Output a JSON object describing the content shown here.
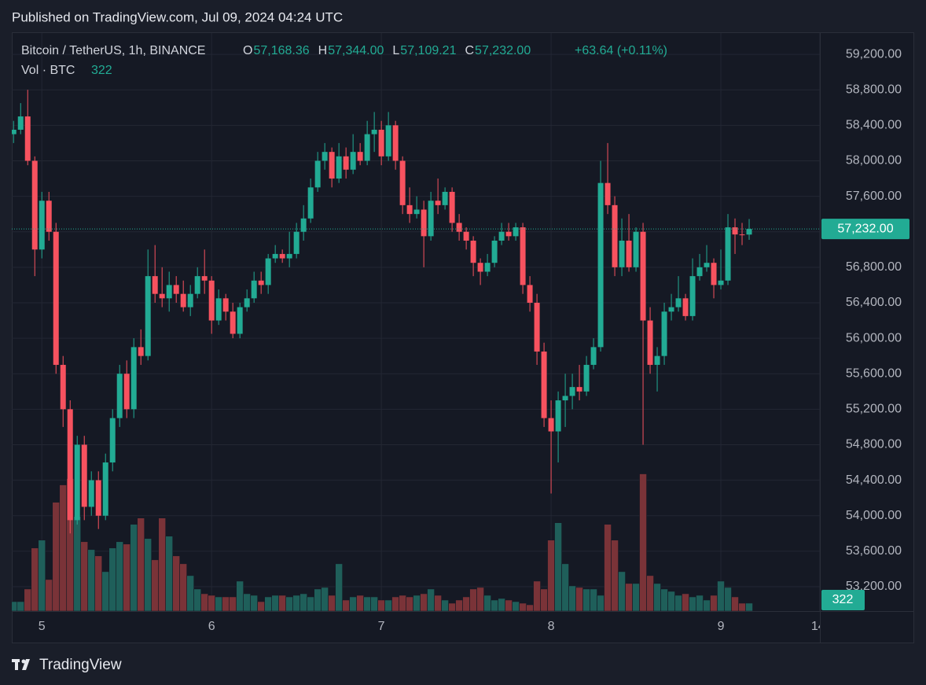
{
  "header": {
    "published": "Published on TradingView.com, Jul 09, 2024 04:24 UTC"
  },
  "footer": {
    "brand": "TradingView"
  },
  "chart_data": {
    "type": "candlestick",
    "symbol": "Bitcoin / TetherUS, 1h, BINANCE",
    "ohlc_legend": [
      {
        "key": "O",
        "value": "57,168.36"
      },
      {
        "key": "H",
        "value": "57,344.00"
      },
      {
        "key": "L",
        "value": "57,109.21"
      },
      {
        "key": "C",
        "value": "57,232.00"
      }
    ],
    "change": "+63.64 (+0.11%)",
    "volume_title": "Vol · BTC",
    "last_price_label": "57,232.00",
    "up_color": "#22ab94",
    "down_color": "#f7525f",
    "up_volume_color": "#1f5f5a",
    "down_volume_color": "#7a3338",
    "open": [
      58300,
      58350,
      58500,
      58000,
      57000,
      57550,
      57200,
      55700,
      55200,
      53950,
      54800,
      54100,
      54400,
      54000,
      54600,
      55100,
      55600,
      55200,
      55900,
      55800,
      56700,
      56500,
      56450,
      56600,
      56500,
      56350,
      56500,
      56700,
      56650,
      56200,
      56450,
      56300,
      56050,
      56350,
      56450,
      56650,
      56600,
      56900,
      56950,
      56900,
      56950,
      57200,
      57350,
      57700,
      58000,
      58100,
      57800,
      58050,
      57900,
      58100,
      58000,
      58300,
      58350,
      58050,
      58400,
      58000,
      57500,
      57400,
      57450,
      57150,
      57550,
      57500,
      57650,
      57300,
      57200,
      57100,
      56850,
      56750,
      56850,
      57100,
      57200,
      57150,
      57250,
      56600,
      56400,
      55850,
      55100,
      54950,
      55300,
      55350,
      55450,
      55400,
      55700,
      55900,
      57750,
      57500,
      56800,
      57100,
      56800,
      57200,
      56200,
      55700,
      55800,
      56300,
      56350,
      56450,
      56250,
      56700,
      56800,
      56850,
      56600,
      56650,
      57250,
      57170,
      57168.36
    ],
    "high": [
      58450,
      58650,
      58800,
      58050,
      57650,
      57650,
      57300,
      55800,
      55300,
      54900,
      54900,
      54500,
      54500,
      54700,
      55200,
      55700,
      55750,
      56000,
      56100,
      57000,
      57050,
      56800,
      56750,
      56700,
      56650,
      56600,
      56800,
      57000,
      56700,
      56550,
      56500,
      56400,
      56400,
      56550,
      56750,
      56750,
      56950,
      57050,
      57000,
      57200,
      57300,
      57500,
      57800,
      58100,
      58200,
      58150,
      58200,
      58150,
      58300,
      58200,
      58450,
      58550,
      58450,
      58550,
      58450,
      58050,
      57700,
      57600,
      57550,
      57650,
      57800,
      57700,
      57700,
      57400,
      57250,
      57150,
      56900,
      56950,
      57150,
      57300,
      57300,
      57300,
      57300,
      56700,
      56500,
      55950,
      55300,
      55400,
      55600,
      55600,
      55700,
      55800,
      56000,
      58000,
      58200,
      57600,
      57350,
      57400,
      57250,
      57300,
      56350,
      55900,
      56400,
      56500,
      56700,
      56500,
      56900,
      56950,
      57050,
      56900,
      57000,
      57400,
      57350,
      57300,
      57344
    ],
    "low": [
      58200,
      58300,
      57950,
      56700,
      56900,
      57100,
      55600,
      55000,
      53800,
      53900,
      53950,
      54000,
      53850,
      53950,
      54500,
      55000,
      55100,
      55100,
      55700,
      55750,
      56400,
      56350,
      56300,
      56400,
      56300,
      56250,
      56450,
      56500,
      56050,
      56150,
      56200,
      56000,
      56000,
      56300,
      56400,
      56500,
      56500,
      56850,
      56850,
      56800,
      56900,
      57100,
      57300,
      57650,
      57900,
      57700,
      57750,
      57800,
      57850,
      57950,
      57950,
      58100,
      57950,
      58000,
      57900,
      57400,
      57300,
      57350,
      56800,
      57100,
      57400,
      57450,
      57200,
      57100,
      57000,
      56700,
      56600,
      56700,
      56800,
      57050,
      57100,
      57100,
      56500,
      56300,
      55700,
      55000,
      54250,
      54600,
      55000,
      55200,
      55300,
      55350,
      55650,
      55850,
      57400,
      56700,
      56700,
      56750,
      56750,
      54800,
      55600,
      55400,
      55700,
      56200,
      56300,
      56200,
      56200,
      56650,
      56750,
      56450,
      56550,
      56600,
      56950,
      57050,
      57109.21
    ],
    "close": [
      58350,
      58500,
      58000,
      57000,
      57550,
      57200,
      55700,
      55200,
      53950,
      54800,
      54100,
      54400,
      54000,
      54600,
      55100,
      55600,
      55200,
      55900,
      55800,
      56700,
      56500,
      56450,
      56600,
      56500,
      56350,
      56500,
      56700,
      56650,
      56200,
      56450,
      56300,
      56050,
      56350,
      56450,
      56650,
      56600,
      56900,
      56950,
      56900,
      56950,
      57200,
      57350,
      57700,
      58000,
      58100,
      57800,
      58050,
      57900,
      58100,
      58000,
      58300,
      58350,
      58050,
      58400,
      58000,
      57500,
      57400,
      57450,
      57150,
      57550,
      57500,
      57650,
      57300,
      57200,
      57100,
      56850,
      56750,
      56850,
      57100,
      57200,
      57150,
      57250,
      56600,
      56400,
      55850,
      55100,
      54950,
      55300,
      55350,
      55450,
      55400,
      55700,
      55900,
      57750,
      57500,
      56800,
      57100,
      56800,
      57200,
      56200,
      55700,
      55800,
      56300,
      56350,
      56450,
      56250,
      56700,
      56800,
      56850,
      56600,
      56650,
      57250,
      57170,
      57168.36,
      57232
    ],
    "volume": [
      384,
      384,
      896,
      2560,
      2880,
      1280,
      4416,
      5120,
      5376,
      3840,
      2816,
      2496,
      2240,
      1600,
      2560,
      2816,
      2720,
      3520,
      3776,
      2944,
      2080,
      3776,
      3040,
      2240,
      1920,
      1440,
      896,
      704,
      640,
      576,
      576,
      576,
      1216,
      704,
      640,
      384,
      576,
      640,
      640,
      576,
      640,
      704,
      576,
      896,
      960,
      640,
      1920,
      448,
      576,
      640,
      576,
      576,
      448,
      448,
      576,
      640,
      576,
      640,
      704,
      896,
      640,
      448,
      320,
      448,
      576,
      896,
      960,
      640,
      448,
      512,
      448,
      384,
      320,
      256,
      1216,
      896,
      2880,
      3584,
      1920,
      1024,
      960,
      896,
      896,
      640,
      3520,
      2880,
      1600,
      1120,
      1120,
      5568,
      1440,
      1120,
      896,
      800,
      640,
      704,
      576,
      640,
      448,
      640,
      1216,
      960,
      576,
      320,
      322
    ],
    "vlim": [
      0,
      6000
    ],
    "xlim": [
      -0.25,
      114
    ],
    "xticks": [
      {
        "value": 4,
        "label": "5"
      },
      {
        "value": 28,
        "label": "6"
      },
      {
        "value": 52,
        "label": "7"
      },
      {
        "value": 76,
        "label": "8"
      },
      {
        "value": 100,
        "label": "9"
      },
      {
        "value": 114,
        "label": "14:"
      }
    ],
    "ylim": [
      52925,
      59440
    ],
    "yticks": [
      {
        "value": 53200,
        "label": "53,200.00"
      },
      {
        "value": 53600,
        "label": "53,600.00"
      },
      {
        "value": 54000,
        "label": "54,000.00"
      },
      {
        "value": 54400,
        "label": "54,400.00"
      },
      {
        "value": 54800,
        "label": "54,800.00"
      },
      {
        "value": 55200,
        "label": "55,200.00"
      },
      {
        "value": 55600,
        "label": "55,600.00"
      },
      {
        "value": 56000,
        "label": "56,000.00"
      },
      {
        "value": 56400,
        "label": "56,400.00"
      },
      {
        "value": 56800,
        "label": "56,800.00"
      },
      {
        "value": 57200,
        "label": "57,200.00"
      },
      {
        "value": 57600,
        "label": "57,600.00"
      },
      {
        "value": 58000,
        "label": "58,000.00"
      },
      {
        "value": 58400,
        "label": "58,400.00"
      },
      {
        "value": 58800,
        "label": "58,800.00"
      },
      {
        "value": 59200,
        "label": "59,200.00"
      }
    ],
    "grid": true
  }
}
